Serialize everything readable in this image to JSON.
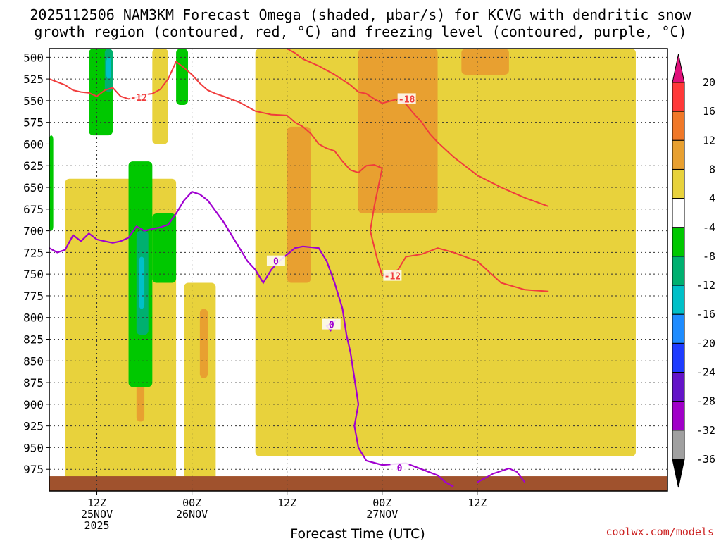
{
  "chart_data": {
    "type": "heatmap",
    "title_lines": [
      "2025112506 NAM3KM Forecast Omega (shaded, µbar/s) for KCVG with dendritic snow",
      "growth region (contoured, red, °C) and freezing level (contoured, purple, °C)"
    ],
    "xlabel": "Forecast Time (UTC)",
    "ylabel": "",
    "ylim": [
      1000,
      490
    ],
    "xlim_hours": [
      6,
      84
    ],
    "y_ticks": [
      500,
      525,
      550,
      575,
      600,
      625,
      650,
      675,
      700,
      725,
      750,
      775,
      800,
      825,
      850,
      875,
      900,
      925,
      950,
      975
    ],
    "x_ticks": [
      {
        "hour": 12,
        "lines": [
          "12Z",
          "25NOV",
          "2025"
        ]
      },
      {
        "hour": 24,
        "lines": [
          "00Z",
          "26NOV"
        ]
      },
      {
        "hour": 36,
        "lines": [
          "12Z"
        ]
      },
      {
        "hour": 48,
        "lines": [
          "00Z",
          "27NOV"
        ]
      },
      {
        "hour": 60,
        "lines": [
          "12Z"
        ]
      }
    ],
    "colorbar": {
      "labels": [
        "20",
        "16",
        "12",
        "8",
        "4",
        "-4",
        "-8",
        "-12",
        "-16",
        "-20",
        "-24",
        "-28",
        "-32",
        "-36"
      ],
      "bins": [
        {
          "range": [
            16,
            20
          ],
          "color": "#ff3838"
        },
        {
          "range": [
            12,
            16
          ],
          "color": "#f07828"
        },
        {
          "range": [
            8,
            12
          ],
          "color": "#e8a030"
        },
        {
          "range": [
            4,
            8
          ],
          "color": "#e8d23c"
        },
        {
          "range": [
            -4,
            4
          ],
          "color": "#ffffff"
        },
        {
          "range": [
            -8,
            -4
          ],
          "color": "#00c800"
        },
        {
          "range": [
            -12,
            -8
          ],
          "color": "#00b070"
        },
        {
          "range": [
            -16,
            -12
          ],
          "color": "#00c0c8"
        },
        {
          "range": [
            -20,
            -16
          ],
          "color": "#1e8cff"
        },
        {
          "range": [
            -24,
            -20
          ],
          "color": "#1e3cff"
        },
        {
          "range": [
            -28,
            -24
          ],
          "color": "#6414c8"
        },
        {
          "range": [
            -32,
            -28
          ],
          "color": "#a000c8"
        },
        {
          "range": [
            -36,
            -32
          ],
          "color": "#a0a0a0"
        }
      ],
      "over_color": "#e0107a",
      "under_color": "#000000"
    },
    "omega_regions": [
      {
        "level": 6,
        "hour_range": [
          19,
          21
        ],
        "pressure_range": [
          490,
          600
        ]
      },
      {
        "level": 6,
        "hour_range": [
          32,
          80
        ],
        "pressure_range": [
          490,
          960
        ]
      },
      {
        "level": 10,
        "hour_range": [
          45,
          55
        ],
        "pressure_range": [
          490,
          680
        ]
      },
      {
        "level": 10,
        "hour_range": [
          58,
          64
        ],
        "pressure_range": [
          490,
          520
        ]
      },
      {
        "level": 10,
        "hour_range": [
          36,
          39
        ],
        "pressure_range": [
          580,
          760
        ]
      },
      {
        "level": 6,
        "hour_range": [
          8,
          22
        ],
        "pressure_range": [
          640,
          990
        ]
      },
      {
        "level": 6,
        "hour_range": [
          23,
          27
        ],
        "pressure_range": [
          760,
          990
        ]
      },
      {
        "level": 10,
        "hour_range": [
          25,
          26
        ],
        "pressure_range": [
          790,
          870
        ]
      },
      {
        "level": 10,
        "hour_range": [
          17,
          18
        ],
        "pressure_range": [
          860,
          920
        ]
      },
      {
        "level": -6,
        "hour_range": [
          11,
          14
        ],
        "pressure_range": [
          490,
          590
        ]
      },
      {
        "level": -6,
        "hour_range": [
          22,
          23.5
        ],
        "pressure_range": [
          490,
          555
        ]
      },
      {
        "level": -6,
        "hour_range": [
          16,
          19
        ],
        "pressure_range": [
          620,
          880
        ]
      },
      {
        "level": -6,
        "hour_range": [
          19,
          22
        ],
        "pressure_range": [
          680,
          760
        ]
      },
      {
        "level": -6,
        "hour_range": [
          6,
          6.5
        ],
        "pressure_range": [
          590,
          700
        ]
      },
      {
        "level": -10,
        "hour_range": [
          13,
          14
        ],
        "pressure_range": [
          490,
          540
        ]
      },
      {
        "level": -10,
        "hour_range": [
          17,
          18.5
        ],
        "pressure_range": [
          700,
          820
        ]
      },
      {
        "level": -14,
        "hour_range": [
          13.2,
          13.8
        ],
        "pressure_range": [
          500,
          525
        ]
      },
      {
        "level": -14,
        "hour_range": [
          17.3,
          18
        ],
        "pressure_range": [
          730,
          790
        ]
      }
    ],
    "dgz_contours": [
      {
        "label": "-12",
        "points": [
          [
            6,
            525
          ],
          [
            8,
            532
          ],
          [
            9,
            538
          ],
          [
            10,
            540
          ],
          [
            11,
            541
          ],
          [
            12,
            545
          ],
          [
            13,
            538
          ],
          [
            14,
            535
          ],
          [
            15,
            545
          ],
          [
            16,
            548
          ],
          [
            17,
            546
          ],
          [
            18,
            543
          ],
          [
            19,
            542
          ],
          [
            20,
            537
          ],
          [
            21,
            525
          ],
          [
            22,
            505
          ],
          [
            23,
            512
          ],
          [
            24,
            520
          ],
          [
            25,
            530
          ],
          [
            26,
            538
          ],
          [
            27,
            542
          ],
          [
            28,
            545
          ],
          [
            30,
            552
          ],
          [
            32,
            562
          ],
          [
            34,
            566
          ],
          [
            36,
            567
          ],
          [
            37,
            575
          ],
          [
            38,
            580
          ],
          [
            39,
            588
          ],
          [
            40,
            600
          ],
          [
            41,
            605
          ],
          [
            42,
            608
          ],
          [
            43,
            620
          ],
          [
            44,
            630
          ],
          [
            45,
            633
          ],
          [
            46,
            625
          ],
          [
            47,
            624
          ],
          [
            48,
            628
          ],
          [
            47.5,
            650
          ],
          [
            47,
            672
          ],
          [
            46.5,
            700
          ],
          [
            47.3,
            730
          ],
          [
            48,
            752
          ],
          [
            50,
            745
          ],
          [
            51,
            730
          ],
          [
            53,
            727
          ],
          [
            55,
            720
          ],
          [
            57,
            725
          ],
          [
            60,
            735
          ],
          [
            63,
            760
          ],
          [
            66,
            768
          ],
          [
            69,
            770
          ]
        ],
        "label_at": [
          49.3,
          752
        ]
      },
      {
        "label": "-18",
        "points": [
          [
            36,
            490
          ],
          [
            37,
            495
          ],
          [
            38,
            502
          ],
          [
            40,
            510
          ],
          [
            42,
            520
          ],
          [
            44,
            532
          ],
          [
            45,
            540
          ],
          [
            46,
            542
          ],
          [
            47,
            548
          ],
          [
            48,
            553
          ],
          [
            50,
            548
          ],
          [
            51,
            554
          ],
          [
            52,
            565
          ],
          [
            53,
            575
          ],
          [
            54,
            588
          ],
          [
            55,
            598
          ],
          [
            57,
            615
          ],
          [
            60,
            636
          ],
          [
            63,
            650
          ],
          [
            66,
            662
          ],
          [
            69,
            672
          ]
        ],
        "label_at": [
          51.1,
          548
        ]
      }
    ],
    "dgz_extra_labels": [
      {
        "label": "-12",
        "at": [
          17.3,
          546
        ]
      }
    ],
    "freezing_contour": {
      "label": "0",
      "points": [
        [
          6,
          720
        ],
        [
          7,
          725
        ],
        [
          8,
          722
        ],
        [
          9,
          705
        ],
        [
          10,
          712
        ],
        [
          11,
          703
        ],
        [
          12,
          710
        ],
        [
          13,
          712
        ],
        [
          14,
          714
        ],
        [
          15,
          712
        ],
        [
          16,
          708
        ],
        [
          17,
          695
        ],
        [
          18,
          700
        ],
        [
          19,
          698
        ],
        [
          20,
          696
        ],
        [
          21,
          693
        ],
        [
          22,
          680
        ],
        [
          23,
          665
        ],
        [
          24,
          655
        ],
        [
          25,
          658
        ],
        [
          26,
          665
        ],
        [
          28,
          690
        ],
        [
          30,
          720
        ],
        [
          31,
          735
        ],
        [
          32,
          745
        ],
        [
          33,
          760
        ],
        [
          34,
          745
        ],
        [
          35,
          735
        ],
        [
          37,
          720
        ],
        [
          38,
          718
        ],
        [
          40,
          720
        ],
        [
          41,
          735
        ],
        [
          42,
          760
        ],
        [
          43,
          790
        ],
        [
          43.5,
          820
        ],
        [
          44,
          840
        ],
        [
          44.5,
          870
        ],
        [
          45,
          900
        ],
        [
          44.5,
          925
        ],
        [
          45,
          950
        ],
        [
          46,
          965
        ],
        [
          48,
          970
        ],
        [
          51,
          968
        ],
        [
          53,
          975
        ],
        [
          55,
          982
        ],
        [
          56,
          990
        ],
        [
          57,
          995
        ]
      ],
      "label_at": [
        34.6,
        735
      ],
      "extra_label_at": [
        50.2,
        973
      ]
    },
    "freezing_blob": {
      "label": "0",
      "points": [
        [
          41,
          810
        ],
        [
          42,
          804
        ],
        [
          41.5,
          815
        ]
      ]
    },
    "small_blob": {
      "points": [
        [
          60,
          990
        ],
        [
          62,
          980
        ],
        [
          64,
          974
        ],
        [
          65,
          978
        ],
        [
          66,
          990
        ]
      ]
    },
    "terrain": {
      "pressure_top": 983,
      "color": "#a0522d"
    }
  },
  "credit": "coolwx.com/models"
}
